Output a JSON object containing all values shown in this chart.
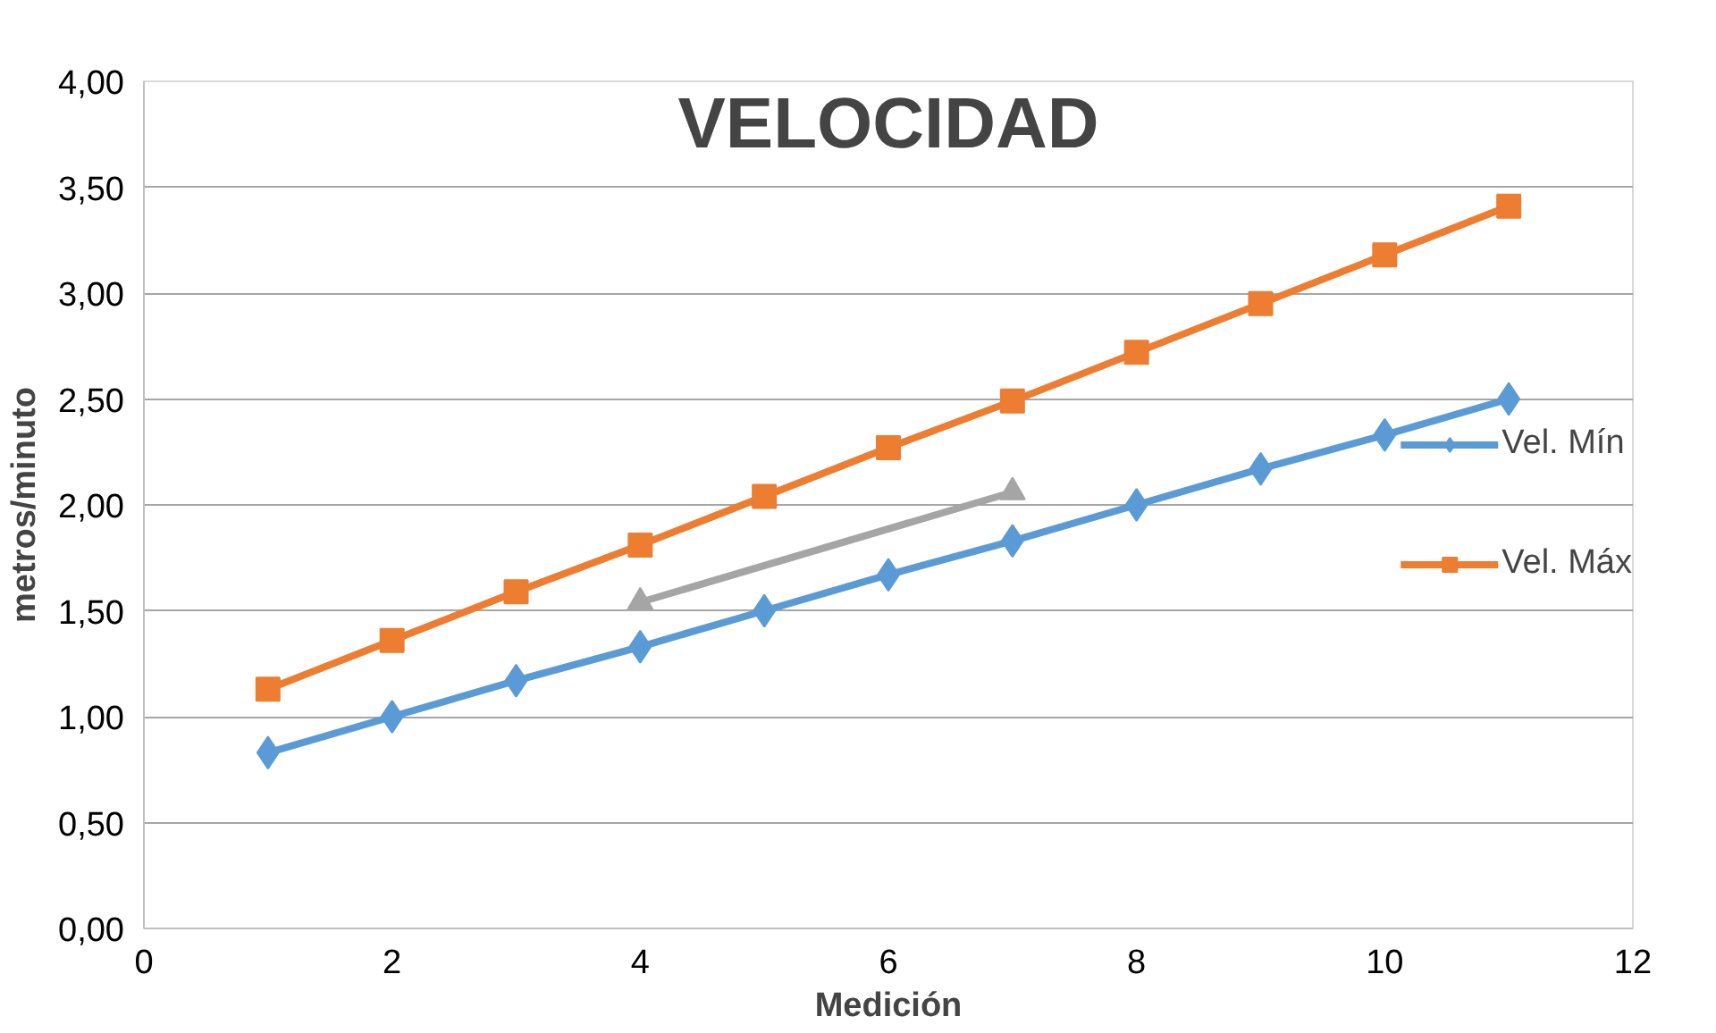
{
  "chart_data": {
    "type": "line",
    "title": "VELOCIDAD",
    "xlabel": "Medición",
    "ylabel": "metros/minuto",
    "xlim": [
      0,
      12
    ],
    "xticks": [
      0,
      2,
      4,
      6,
      8,
      10,
      12
    ],
    "ylim": [
      0,
      4
    ],
    "yticks": [
      {
        "value": 0,
        "label": "0,00"
      },
      {
        "value": 0.5,
        "label": "0,50"
      },
      {
        "value": 1,
        "label": "1,00"
      },
      {
        "value": 1.5,
        "label": "1,50"
      },
      {
        "value": 2,
        "label": "2,00"
      },
      {
        "value": 2.5,
        "label": "2,50"
      },
      {
        "value": 3,
        "label": "3,00"
      },
      {
        "value": 3.5,
        "label": "3,50"
      },
      {
        "value": 4,
        "label": "4,00"
      }
    ],
    "grid": "y",
    "legend": "right",
    "line_style": "solid",
    "series": [
      {
        "name": "Vel. Mín",
        "color": "#5b9bd5",
        "marker": "diamond",
        "x": [
          1,
          2,
          3,
          4,
          5,
          6,
          7,
          8,
          9,
          10,
          11
        ],
        "values": [
          0.83,
          1.0,
          1.17,
          1.33,
          1.5,
          1.67,
          1.83,
          2.0,
          2.17,
          2.33,
          2.5
        ]
      },
      {
        "name": "Vel. Máx",
        "color": "#ed7d31",
        "marker": "square",
        "x": [
          1,
          2,
          3,
          4,
          5,
          6,
          7,
          8,
          9,
          10,
          11
        ],
        "values": [
          1.13,
          1.36,
          1.59,
          1.81,
          2.04,
          2.27,
          2.49,
          2.72,
          2.95,
          3.18,
          3.41
        ]
      },
      {
        "color": "#a5a5a5",
        "marker": "triangle",
        "x": [
          4,
          7
        ],
        "values": [
          1.54,
          2.06
        ]
      }
    ]
  }
}
